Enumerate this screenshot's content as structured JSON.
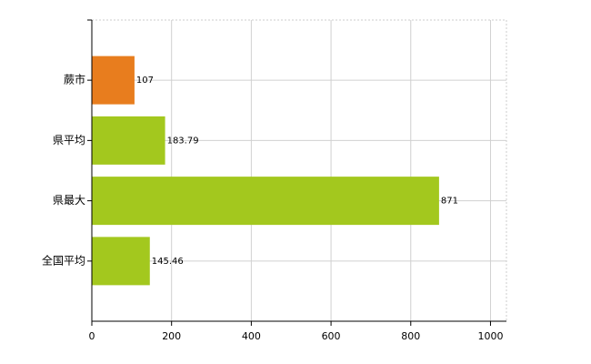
{
  "chart_data": {
    "type": "bar",
    "orientation": "horizontal",
    "categories": [
      "蕨市",
      "県平均",
      "県最大",
      "全国平均"
    ],
    "values": [
      107,
      183.79,
      871,
      145.46
    ],
    "colors": [
      "#e87d1e",
      "#a3c81e",
      "#a3c81e",
      "#a3c81e"
    ],
    "xlim": [
      0,
      1040
    ],
    "xticks": [
      0,
      200,
      400,
      600,
      800,
      1000
    ],
    "grid": true
  }
}
